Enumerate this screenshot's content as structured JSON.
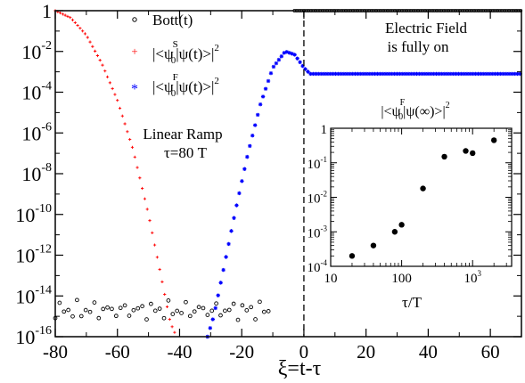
{
  "chart_data": [
    {
      "type": "scatter",
      "xlabel": "ξ=t-τ",
      "ylabel": "",
      "xlim": [
        -80,
        70
      ],
      "ylim_log10": [
        -16,
        0
      ],
      "y_scale": "log",
      "x_ticks": [
        -80,
        -60,
        -40,
        -20,
        0,
        20,
        40,
        60
      ],
      "x_tick_labels": [
        "-80",
        "-60",
        "-40",
        "-20",
        "0",
        "20",
        "40",
        "60"
      ],
      "y_ticks_log10": [
        0,
        -2,
        -4,
        -6,
        -8,
        -10,
        -12,
        -14,
        -16
      ],
      "y_tick_labels": [
        {
          "base": "1",
          "exp": ""
        },
        {
          "base": "10",
          "exp": "-2"
        },
        {
          "base": "10",
          "exp": "-4"
        },
        {
          "base": "10",
          "exp": "-6"
        },
        {
          "base": "10",
          "exp": "-8"
        },
        {
          "base": "10",
          "exp": "-10"
        },
        {
          "base": "10",
          "exp": "-12"
        },
        {
          "base": "10",
          "exp": "-14"
        },
        {
          "base": "10",
          "exp": "-16"
        }
      ],
      "legend_position": "top-left",
      "legend": [
        {
          "text": "Bott(t)",
          "marker": "open-circle",
          "color": "#000000"
        },
        {
          "text_parts": [
            "|<ψ",
            "S",
            "0",
            "|ψ(t)>|",
            "2"
          ],
          "marker": "plus",
          "color": "#ff0000"
        },
        {
          "text_parts": [
            "|<ψ",
            "F",
            "0",
            "|ψ(t)>|",
            "2"
          ],
          "marker": "star",
          "color": "#0000ff"
        }
      ],
      "annotations": {
        "field_line1": "Electric Field",
        "field_line2": "is fully on",
        "ramp_line1": "Linear Ramp",
        "ramp_line2": "τ=80 T"
      },
      "vertical_line_x": 0,
      "series": [
        {
          "name": "Bott(t)",
          "marker": "open-circle",
          "color": "#000000",
          "x_region_1": [
            -80,
            -10
          ],
          "y_log10_region_1": [
            -15.2,
            -14.2
          ],
          "x_region_2": [
            -3,
            70
          ],
          "y_log10_region_2": 0
        },
        {
          "name": "|<ψ0S|ψ(t)>|²",
          "marker": "plus",
          "color": "#ff0000",
          "points_log10": [
            [
              -80,
              0
            ],
            [
              -75,
              -0.35
            ],
            [
              -70,
              -1.2
            ],
            [
              -65,
              -2.6
            ],
            [
              -60,
              -4.4
            ],
            [
              -55,
              -6.8
            ],
            [
              -50,
              -10.0
            ],
            [
              -46,
              -13.0
            ],
            [
              -43,
              -15.3
            ],
            [
              -41,
              -16.0
            ]
          ]
        },
        {
          "name": "|<ψ0F|ψ(t)>|²",
          "marker": "star",
          "color": "#0000ff",
          "points_log10": [
            [
              -31,
              -16.0
            ],
            [
              -29,
              -15.0
            ],
            [
              -26,
              -12.8
            ],
            [
              -22,
              -9.8
            ],
            [
              -18,
              -7.0
            ],
            [
              -14,
              -4.6
            ],
            [
              -10,
              -2.8
            ],
            [
              -6,
              -2.0
            ],
            [
              -3,
              -2.15
            ],
            [
              0,
              -2.8
            ],
            [
              2,
              -3.1
            ],
            [
              70,
              -3.1
            ]
          ]
        }
      ]
    },
    {
      "type": "scatter",
      "title_parts": [
        "|<ψ",
        "F",
        "0",
        "|ψ(∞)>|",
        "2"
      ],
      "xlabel": "τ/T",
      "x_scale": "log",
      "y_scale": "log",
      "xlim_log10": [
        1,
        3.55
      ],
      "ylim_log10": [
        -4,
        0
      ],
      "x_tick_labels": [
        {
          "base": "10",
          "exp": ""
        },
        {
          "base": "100",
          "exp": ""
        },
        {
          "base": "10",
          "exp": "3"
        }
      ],
      "y_tick_labels": [
        {
          "base": "1",
          "exp": ""
        },
        {
          "base": "10",
          "exp": "-1"
        },
        {
          "base": "10",
          "exp": "-2"
        },
        {
          "base": "10",
          "exp": "-3"
        },
        {
          "base": "10",
          "exp": "-4"
        }
      ],
      "x": [
        20,
        40,
        80,
        100,
        200,
        400,
        800,
        1000,
        2000
      ],
      "y": [
        0.0002,
        0.0004,
        0.001,
        0.0016,
        0.018,
        0.15,
        0.22,
        0.19,
        0.45
      ]
    }
  ]
}
